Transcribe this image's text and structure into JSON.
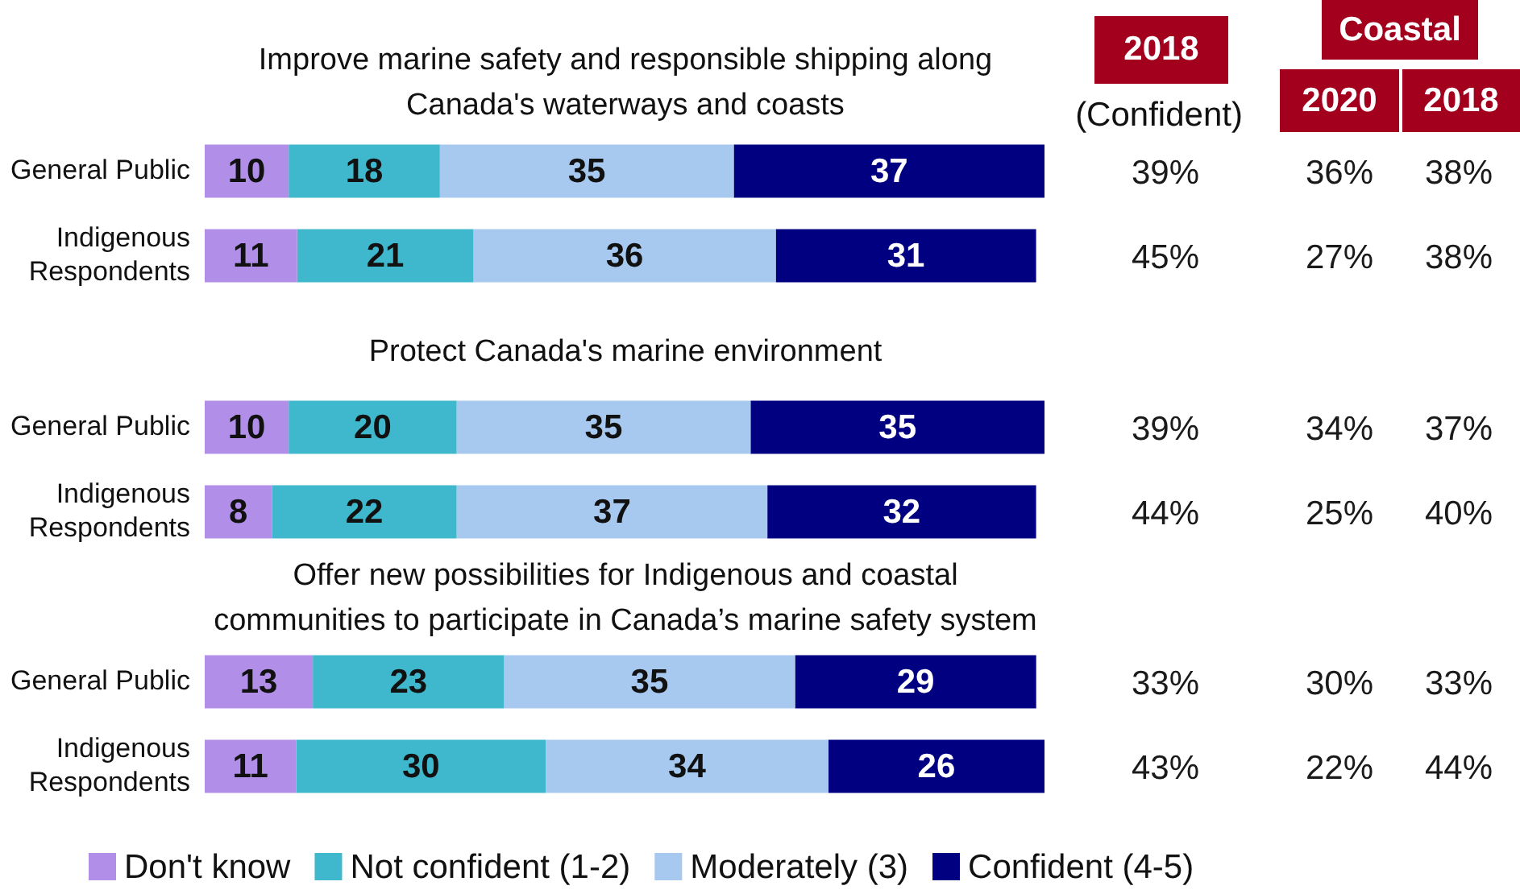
{
  "chart_data": [
    {
      "type": "bar",
      "orientation": "horizontal",
      "stacked": true,
      "data_labels": true,
      "title": "Improve marine safety and responsible shipping along Canada's waterways and coasts",
      "categories": [
        "General Public",
        "Indigenous Respondents"
      ],
      "series": [
        {
          "color": "#b18fe9",
          "values": [
            10,
            11
          ]
        },
        {
          "color": "#3fb7cc",
          "values": [
            18,
            21
          ]
        },
        {
          "color": "#a8c9ef",
          "values": [
            35,
            36
          ]
        },
        {
          "color": "#000080",
          "values": [
            37,
            31
          ]
        }
      ],
      "annotations": [
        "39%",
        "36%",
        "38%",
        "45%",
        "27%",
        "38%"
      ]
    },
    {
      "type": "bar",
      "orientation": "horizontal",
      "stacked": true,
      "data_labels": true,
      "title": "Protect Canada's marine environment",
      "categories": [
        "General Public",
        "Indigenous Respondents"
      ],
      "series": [
        {
          "color": "#b18fe9",
          "values": [
            10,
            8
          ]
        },
        {
          "color": "#3fb7cc",
          "values": [
            20,
            22
          ]
        },
        {
          "color": "#a8c9ef",
          "values": [
            35,
            37
          ]
        },
        {
          "color": "#000080",
          "values": [
            35,
            32
          ]
        }
      ],
      "annotations": [
        "39%",
        "34%",
        "37%",
        "44%",
        "25%",
        "40%"
      ]
    },
    {
      "type": "bar",
      "orientation": "horizontal",
      "stacked": true,
      "data_labels": true,
      "legend": "bottom",
      "title": "Offer new possibilities for Indigenous and coastal\ncommunities to participate in Canada’s marine safety system",
      "categories": [
        "General Public",
        "Indigenous Respondents"
      ],
      "series": [
        {
          "name": "Don't know",
          "color": "#b18fe9",
          "values": [
            13,
            11
          ]
        },
        {
          "name": "Not confident (1-2)",
          "color": "#3fb7cc",
          "values": [
            23,
            30
          ]
        },
        {
          "name": "Moderately (3)",
          "color": "#a8c9ef",
          "values": [
            35,
            34
          ]
        },
        {
          "name": "Confident (4-5)",
          "color": "#000080",
          "values": [
            29,
            26
          ]
        }
      ],
      "annotations": [
        "33%",
        "30%",
        "33%",
        "43%",
        "22%",
        "44%"
      ]
    },
    {
      "type": "other",
      "color": "#a3001e",
      "annotations": [
        "2018",
        "(Confident)",
        "Coastal",
        "2020",
        "2018"
      ]
    }
  ]
}
